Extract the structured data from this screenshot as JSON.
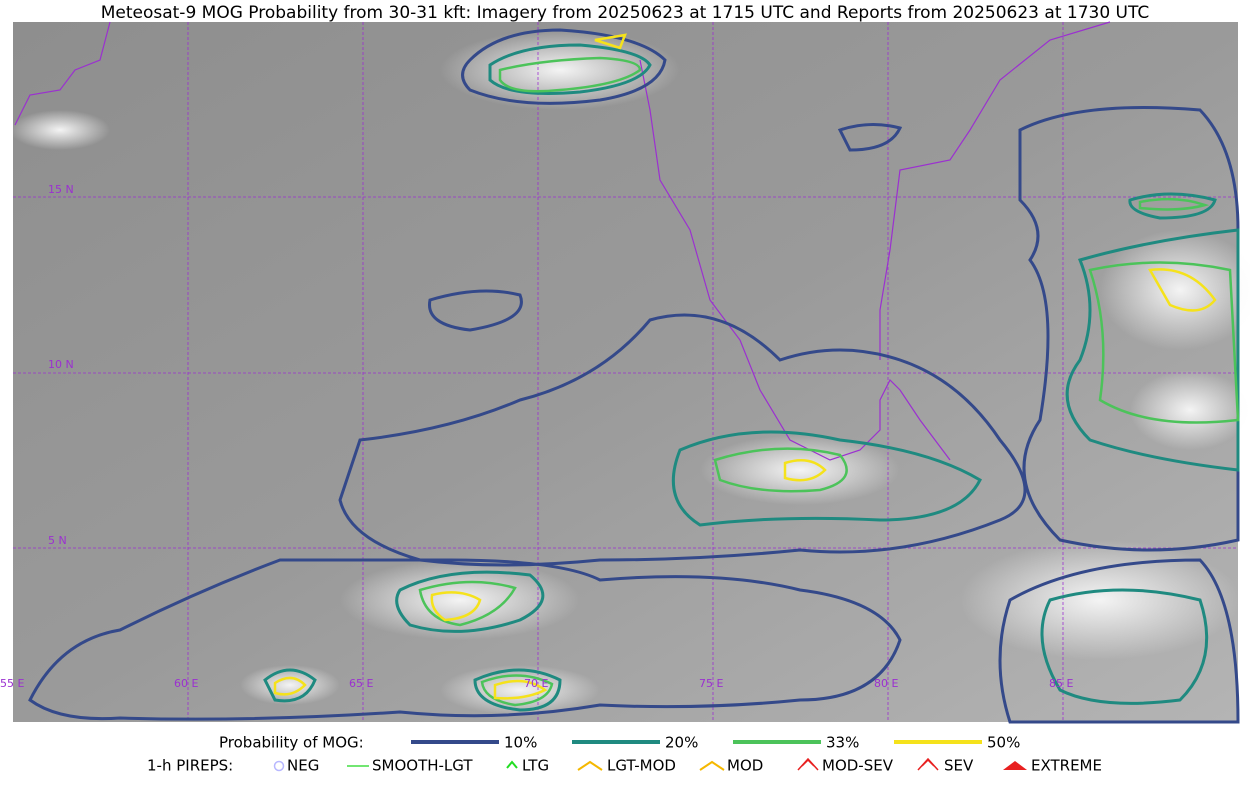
{
  "title": "Meteosat-9 MOG Probability from 30-31 kft: Imagery from 20250623 at 1715 UTC and Reports from 20250623 at 1730 UTC",
  "lat_labels": [
    "15 N",
    "10 N",
    "5 N"
  ],
  "lon_labels": [
    "55 E",
    "60 E",
    "65 E",
    "70 E",
    "75 E",
    "80 E",
    "85 E"
  ],
  "legend": {
    "probability": {
      "label": "Probability of MOG:",
      "items": [
        {
          "label": "10%",
          "color": "#34498a"
        },
        {
          "label": "20%",
          "color": "#1f8a80"
        },
        {
          "label": "33%",
          "color": "#4cc35a"
        },
        {
          "label": "50%",
          "color": "#f5e21b"
        }
      ]
    },
    "pireps": {
      "label": "1-h PIREPS:",
      "items": [
        "NEG",
        "SMOOTH-LGT",
        "LTG",
        "LGT-MOD",
        "MOD",
        "MOD-SEV",
        "SEV",
        "EXTREME"
      ]
    }
  }
}
